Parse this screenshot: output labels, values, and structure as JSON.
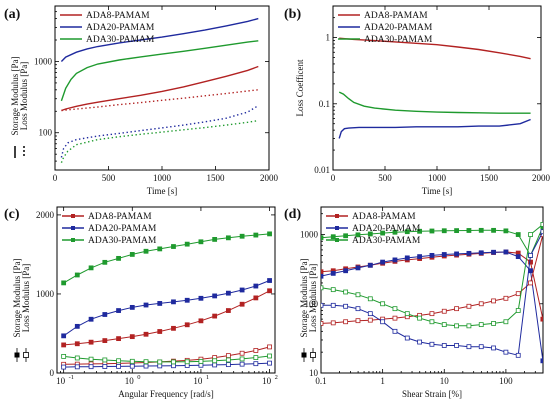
{
  "chart_data": [
    {
      "id": "a",
      "panel_label": "(a)",
      "type": "line",
      "xlabel": "Time [s]",
      "ylabel_solid": "Storage Modulus [Pa]",
      "ylabel_dashed": "Loss Modulus [Pa]",
      "xscale": "linear",
      "yscale": "log",
      "xlim": [
        0,
        2000
      ],
      "ylim": [
        30,
        6000
      ],
      "xticks": [
        0,
        500,
        1000,
        1500,
        2000
      ],
      "xticklabels": [
        "0",
        "500",
        "1000",
        "1500",
        "2000"
      ],
      "yticks": [
        100,
        1000
      ],
      "yticklabels": [
        "100",
        "1000"
      ],
      "legend_position": "top-left",
      "series": [
        {
          "name": "ADA8-PAMAM",
          "color": "#b22222",
          "style": "solid",
          "x": [
            60,
            100,
            200,
            300,
            400,
            600,
            800,
            1000,
            1200,
            1400,
            1600,
            1800,
            1900
          ],
          "y": [
            205,
            215,
            235,
            252,
            268,
            300,
            335,
            380,
            440,
            520,
            620,
            750,
            850
          ]
        },
        {
          "name": "ADA20-PAMAM",
          "color": "#1f2a9e",
          "style": "solid",
          "x": [
            60,
            100,
            200,
            300,
            400,
            600,
            800,
            1000,
            1200,
            1400,
            1600,
            1800,
            1900
          ],
          "y": [
            1000,
            1150,
            1350,
            1500,
            1620,
            1820,
            2000,
            2200,
            2450,
            2750,
            3150,
            3650,
            4000
          ]
        },
        {
          "name": "ADA30-PAMAM",
          "color": "#1f9a2e",
          "style": "solid",
          "x": [
            60,
            100,
            150,
            200,
            300,
            400,
            600,
            800,
            1000,
            1200,
            1400,
            1600,
            1800,
            1900
          ],
          "y": [
            280,
            420,
            560,
            680,
            820,
            920,
            1050,
            1160,
            1270,
            1390,
            1530,
            1690,
            1870,
            1950
          ]
        },
        {
          "name": "ADA8-PAMAM loss",
          "color": "#b22222",
          "style": "dotted",
          "x": [
            60,
            100,
            200,
            400,
            600,
            800,
            1000,
            1200,
            1400,
            1600,
            1800,
            1900
          ],
          "y": [
            205,
            208,
            215,
            230,
            248,
            265,
            285,
            305,
            330,
            355,
            385,
            400
          ]
        },
        {
          "name": "ADA20-PAMAM loss",
          "color": "#1f2a9e",
          "style": "dotted",
          "x": [
            60,
            80,
            120,
            200,
            400,
            600,
            800,
            1000,
            1200,
            1400,
            1600,
            1800,
            1900
          ],
          "y": [
            45,
            60,
            72,
            80,
            90,
            98,
            107,
            117,
            128,
            142,
            160,
            195,
            240
          ]
        },
        {
          "name": "ADA30-PAMAM loss",
          "color": "#1f9a2e",
          "style": "dotted",
          "x": [
            60,
            80,
            120,
            200,
            400,
            600,
            800,
            1000,
            1200,
            1400,
            1600,
            1800,
            1900
          ],
          "y": [
            38,
            45,
            55,
            68,
            80,
            88,
            95,
            102,
            110,
            118,
            128,
            140,
            148
          ]
        }
      ]
    },
    {
      "id": "b",
      "panel_label": "(b)",
      "type": "line",
      "xlabel": "Time [s]",
      "ylabel": "Loss Coefficent",
      "xscale": "linear",
      "yscale": "log",
      "xlim": [
        0,
        2000
      ],
      "ylim": [
        0.01,
        3
      ],
      "xticks": [
        0,
        500,
        1000,
        1500,
        2000
      ],
      "xticklabels": [
        "0",
        "500",
        "1000",
        "1500",
        "2000"
      ],
      "yticks": [
        0.01,
        0.1,
        1
      ],
      "yticklabels": [
        "0.01",
        "0.1",
        "1"
      ],
      "legend_position": "top-left",
      "series": [
        {
          "name": "ADA8-PAMAM",
          "color": "#b22222",
          "style": "solid",
          "x": [
            60,
            200,
            400,
            600,
            800,
            1000,
            1200,
            1400,
            1600,
            1800,
            1900
          ],
          "y": [
            0.98,
            0.94,
            0.9,
            0.86,
            0.82,
            0.78,
            0.72,
            0.66,
            0.59,
            0.52,
            0.48
          ]
        },
        {
          "name": "ADA20-PAMAM",
          "color": "#1f2a9e",
          "style": "solid",
          "x": [
            60,
            80,
            110,
            150,
            250,
            400,
            600,
            800,
            1000,
            1200,
            1400,
            1600,
            1800,
            1900
          ],
          "y": [
            0.03,
            0.038,
            0.042,
            0.043,
            0.044,
            0.044,
            0.044,
            0.045,
            0.045,
            0.045,
            0.046,
            0.046,
            0.05,
            0.058
          ]
        },
        {
          "name": "ADA30-PAMAM",
          "color": "#1f9a2e",
          "style": "solid",
          "x": [
            60,
            100,
            150,
            200,
            300,
            400,
            600,
            800,
            1000,
            1200,
            1400,
            1600,
            1800,
            1900
          ],
          "y": [
            0.15,
            0.14,
            0.12,
            0.105,
            0.092,
            0.086,
            0.08,
            0.077,
            0.075,
            0.074,
            0.073,
            0.072,
            0.072,
            0.072
          ]
        }
      ]
    },
    {
      "id": "c",
      "panel_label": "(c)",
      "type": "line",
      "xlabel": "Angular Frequency [rad/s]",
      "ylabel_solid": "Storage Modulus [Pa]",
      "ylabel_open": "Loss Modulus [Pa]",
      "xscale": "log",
      "yscale": "linear",
      "xlim": [
        0.08,
        120
      ],
      "ylim": [
        0,
        2100
      ],
      "xticks": [
        0.1,
        1,
        10,
        100
      ],
      "xticklabels": [
        "10",
        "10",
        "10",
        "10"
      ],
      "xtickexponents": [
        "-1",
        "0",
        "1",
        "2"
      ],
      "yticks": [
        0,
        1000,
        2000
      ],
      "yticklabels": [
        "0",
        "1000",
        "2000"
      ],
      "legend_position": "top-left",
      "series": [
        {
          "name": "ADA8-PAMAM",
          "color": "#b22222",
          "marker": "square-filled",
          "x": [
            0.1,
            0.158,
            0.251,
            0.398,
            0.631,
            1,
            1.585,
            2.512,
            3.981,
            6.31,
            10,
            15.85,
            25.12,
            39.81,
            63.1,
            100
          ],
          "y": [
            355,
            370,
            390,
            410,
            435,
            460,
            490,
            525,
            565,
            610,
            660,
            720,
            790,
            870,
            950,
            1040
          ]
        },
        {
          "name": "ADA20-PAMAM",
          "color": "#1f2a9e",
          "marker": "square-filled",
          "x": [
            0.1,
            0.158,
            0.251,
            0.398,
            0.631,
            1,
            1.585,
            2.512,
            3.981,
            6.31,
            10,
            15.85,
            25.12,
            39.81,
            63.1,
            100
          ],
          "y": [
            470,
            590,
            680,
            740,
            790,
            830,
            860,
            880,
            900,
            920,
            945,
            975,
            1010,
            1050,
            1100,
            1170
          ]
        },
        {
          "name": "ADA30-PAMAM",
          "color": "#1f9a2e",
          "marker": "square-filled",
          "x": [
            0.1,
            0.158,
            0.251,
            0.398,
            0.631,
            1,
            1.585,
            2.512,
            3.981,
            6.31,
            10,
            15.85,
            25.12,
            39.81,
            63.1,
            100
          ],
          "y": [
            1140,
            1240,
            1330,
            1400,
            1450,
            1500,
            1540,
            1570,
            1600,
            1630,
            1660,
            1690,
            1710,
            1730,
            1745,
            1760
          ]
        },
        {
          "name": "ADA8-PAMAM loss",
          "color": "#b22222",
          "marker": "square-open",
          "x": [
            0.1,
            0.158,
            0.251,
            0.398,
            0.631,
            1,
            1.585,
            2.512,
            3.981,
            6.31,
            10,
            15.85,
            25.12,
            39.81,
            63.1,
            100
          ],
          "y": [
            110,
            112,
            115,
            118,
            122,
            127,
            133,
            140,
            150,
            160,
            175,
            195,
            220,
            250,
            285,
            330
          ]
        },
        {
          "name": "ADA20-PAMAM loss",
          "color": "#1f2a9e",
          "marker": "square-open",
          "x": [
            0.1,
            0.158,
            0.251,
            0.398,
            0.631,
            1,
            1.585,
            2.512,
            3.981,
            6.31,
            10,
            15.85,
            25.12,
            39.81,
            63.1,
            100
          ],
          "y": [
            75,
            78,
            80,
            82,
            84,
            86,
            88,
            90,
            92,
            95,
            98,
            102,
            106,
            112,
            118,
            125
          ]
        },
        {
          "name": "ADA30-PAMAM loss",
          "color": "#1f9a2e",
          "marker": "square-open",
          "x": [
            0.1,
            0.158,
            0.251,
            0.398,
            0.631,
            1,
            1.585,
            2.512,
            3.981,
            6.31,
            10,
            15.85,
            25.12,
            39.81,
            63.1,
            100
          ],
          "y": [
            210,
            190,
            175,
            165,
            155,
            148,
            143,
            140,
            140,
            142,
            147,
            155,
            165,
            178,
            195,
            215
          ]
        }
      ]
    },
    {
      "id": "d",
      "panel_label": "(d)",
      "type": "line",
      "xlabel": "Shear Strain [%]",
      "ylabel_solid": "Storage Modulus [Pa]",
      "ylabel_open": "Loss Modulus [Pa]",
      "xscale": "log",
      "yscale": "log",
      "xlim": [
        0.1,
        400
      ],
      "ylim": [
        10,
        2500
      ],
      "xticks": [
        0.1,
        1,
        10,
        100
      ],
      "xticklabels": [
        "0.1",
        "1",
        "10",
        "100"
      ],
      "yticks": [
        10,
        100,
        1000
      ],
      "yticklabels": [
        "10",
        "100",
        "1000"
      ],
      "legend_position": "top-left",
      "series": [
        {
          "name": "ADA8-PAMAM",
          "color": "#b22222",
          "marker": "square-filled",
          "x": [
            0.1,
            0.158,
            0.251,
            0.398,
            0.631,
            1,
            1.585,
            2.512,
            3.981,
            6.31,
            10,
            15.85,
            25.12,
            39.81,
            63.1,
            100,
            158.5,
            251.2,
            398
          ],
          "y": [
            290,
            300,
            320,
            340,
            360,
            385,
            410,
            430,
            450,
            470,
            490,
            505,
            520,
            535,
            550,
            560,
            540,
            400,
            60
          ]
        },
        {
          "name": "ADA20-PAMAM",
          "color": "#1f2a9e",
          "marker": "square-filled",
          "x": [
            0.1,
            0.158,
            0.251,
            0.398,
            0.631,
            1,
            1.585,
            2.512,
            3.981,
            6.31,
            10,
            15.85,
            25.12,
            39.81,
            63.1,
            100,
            158.5,
            251.2,
            398
          ],
          "y": [
            250,
            275,
            300,
            330,
            360,
            400,
            430,
            460,
            480,
            500,
            515,
            525,
            535,
            545,
            555,
            560,
            480,
            300,
            15
          ]
        },
        {
          "name": "ADA30-PAMAM",
          "color": "#1f9a2e",
          "marker": "square-filled",
          "x": [
            0.1,
            0.158,
            0.251,
            0.398,
            0.631,
            1,
            1.585,
            2.512,
            3.981,
            6.31,
            10,
            15.85,
            25.12,
            39.81,
            63.1,
            100,
            158.5,
            251.2,
            398
          ],
          "y": [
            900,
            930,
            960,
            990,
            1020,
            1050,
            1080,
            1100,
            1115,
            1125,
            1135,
            1140,
            1145,
            1150,
            1150,
            1130,
            1000,
            500,
            1300
          ]
        },
        {
          "name": "ADA8-PAMAM loss",
          "color": "#b22222",
          "marker": "square-open",
          "x": [
            0.1,
            0.158,
            0.251,
            0.398,
            0.631,
            1,
            1.585,
            2.512,
            3.981,
            6.31,
            10,
            15.85,
            25.12,
            39.81,
            63.1,
            100,
            158.5,
            251.2,
            398
          ],
          "y": [
            52,
            53,
            55,
            57,
            58,
            60,
            62,
            65,
            68,
            72,
            78,
            85,
            92,
            100,
            110,
            120,
            140,
            200,
            1000
          ]
        },
        {
          "name": "ADA20-PAMAM loss",
          "color": "#1f2a9e",
          "marker": "square-open",
          "x": [
            0.1,
            0.158,
            0.251,
            0.398,
            0.631,
            1,
            1.585,
            2.512,
            3.981,
            6.31,
            10,
            15.85,
            25.12,
            39.81,
            63.1,
            100,
            158.5,
            251.2,
            398
          ],
          "y": [
            95,
            95,
            92,
            85,
            72,
            55,
            40,
            32,
            28,
            26,
            25,
            25,
            24,
            24,
            23,
            20,
            18,
            500,
            1100
          ]
        },
        {
          "name": "ADA30-PAMAM loss",
          "color": "#1f9a2e",
          "marker": "square-open",
          "x": [
            0.1,
            0.158,
            0.251,
            0.398,
            0.631,
            1,
            1.585,
            2.512,
            3.981,
            6.31,
            10,
            15.85,
            25.12,
            39.81,
            63.1,
            100,
            158.5,
            251.2,
            398
          ],
          "y": [
            170,
            160,
            148,
            135,
            118,
            100,
            85,
            72,
            62,
            55,
            50,
            48,
            48,
            50,
            52,
            55,
            80,
            1000,
            1400
          ]
        }
      ]
    }
  ]
}
